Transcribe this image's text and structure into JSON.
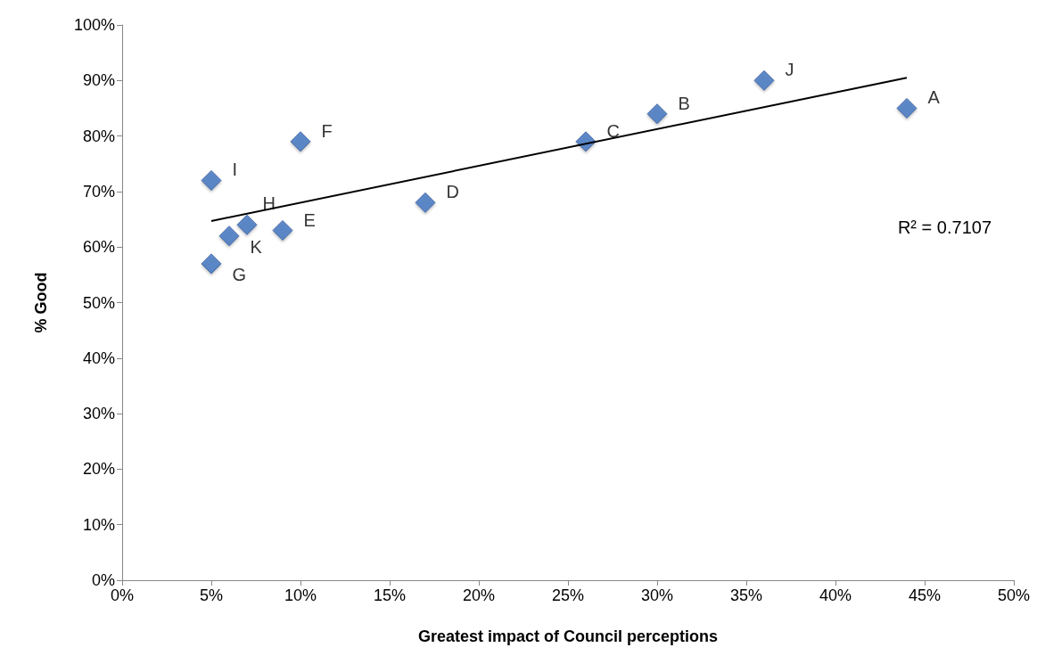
{
  "chart_data": {
    "type": "scatter",
    "xlabel": "Greatest impact of Council perceptions",
    "ylabel": "% Good",
    "marker": "diamond",
    "xlim": [
      0,
      50
    ],
    "xticks": [
      {
        "value": 0,
        "label": "0%"
      },
      {
        "value": 5,
        "label": "5%"
      },
      {
        "value": 10,
        "label": "10%"
      },
      {
        "value": 15,
        "label": "15%"
      },
      {
        "value": 20,
        "label": "20%"
      },
      {
        "value": 25,
        "label": "25%"
      },
      {
        "value": 30,
        "label": "30%"
      },
      {
        "value": 35,
        "label": "35%"
      },
      {
        "value": 40,
        "label": "40%"
      },
      {
        "value": 45,
        "label": "45%"
      },
      {
        "value": 50,
        "label": "50%"
      }
    ],
    "ylim": [
      0,
      100
    ],
    "yticks": [
      {
        "value": 0,
        "label": "0%"
      },
      {
        "value": 10,
        "label": "10%"
      },
      {
        "value": 20,
        "label": "20%"
      },
      {
        "value": 30,
        "label": "30%"
      },
      {
        "value": 40,
        "label": "40%"
      },
      {
        "value": 50,
        "label": "50%"
      },
      {
        "value": 60,
        "label": "60%"
      },
      {
        "value": 70,
        "label": "70%"
      },
      {
        "value": 80,
        "label": "80%"
      },
      {
        "value": 90,
        "label": "90%"
      },
      {
        "value": 100,
        "label": "100%"
      }
    ],
    "annotations": [
      "R² = 0.7107"
    ],
    "series": [
      {
        "color": "#3f73c0",
        "x": [
          44,
          30,
          26,
          17,
          9,
          10,
          5,
          7,
          5,
          36,
          6
        ],
        "values": [
          85,
          84,
          79,
          68,
          63,
          79,
          57,
          64,
          72,
          90,
          62
        ],
        "value_labels": [
          "A",
          "B",
          "C",
          "D",
          "E",
          "F",
          "G",
          "H",
          "I",
          "J",
          "K"
        ]
      },
      {
        "type": "line",
        "color": "#000000",
        "marker": "none",
        "x": [
          5,
          44
        ],
        "values": [
          64.7,
          90.5
        ]
      }
    ]
  }
}
